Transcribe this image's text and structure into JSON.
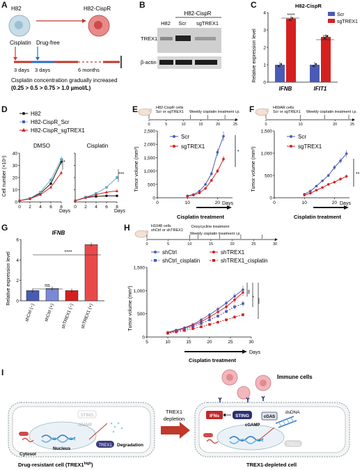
{
  "panels": {
    "A": {
      "letter": "A",
      "parent": "H82",
      "derived": "H82-CispR",
      "cisplatin": "Cisplatin",
      "drug_free": "Drug-free",
      "d1": "3 days",
      "d2": "3 days",
      "d3": "6 months",
      "caption1": "Cisplatin concentration gradually increased",
      "caption2": "(0.25 > 0.5 > 0.75 > 1.0 µmol/L)"
    },
    "B": {
      "letter": "B",
      "group": "H82-CispR",
      "lanes": [
        "H82",
        "Scr",
        "sgTREX1"
      ],
      "rows": [
        "TREX1",
        "β-actin"
      ]
    },
    "C": {
      "letter": "C",
      "title": "H82-CispR",
      "ylabel": "Relative expression level",
      "legend": [
        "Scr",
        "sgTREX1"
      ],
      "sig": [
        "****",
        "***"
      ],
      "colors": {
        "scr": "#4a5bb5",
        "sg": "#d62020"
      }
    },
    "D": {
      "letter": "D",
      "legend": [
        "H82",
        "H82-CispR_Scr",
        "H82-CispR_sgTREX1"
      ],
      "sub": [
        "DMSO",
        "Cisplatin"
      ],
      "ylabel": "Cell number (×10⁴)",
      "xlabel": "Days",
      "sig": [
        "*",
        "***"
      ]
    },
    "E": {
      "letter": "E",
      "note1": "H82-CispR cells",
      "note2": "Scr or sgTREX1",
      "note3": "Weekly cisplatin treatment i.p.",
      "ylabel": "Tumor volume (mm³)",
      "xlabel": "Days",
      "arrow": "Cisplatin treatment",
      "legend": [
        "Scr",
        "sgTREX1"
      ],
      "sig": "*"
    },
    "F": {
      "letter": "F",
      "note1": "H69AR cells",
      "note2": "Scr or sgTREX1",
      "note3": "Weekly cisplatin treatment i.p.",
      "ylabel": "Tumor volume (mm³)",
      "xlabel": "Days",
      "arrow": "Cisplatin treatment",
      "legend": [
        "Scr",
        "sgTREX1"
      ],
      "sig": "**"
    },
    "G": {
      "letter": "G",
      "title": "IFNB",
      "ylabel": "Relative expression level",
      "sig": [
        "ns",
        "****"
      ]
    },
    "H": {
      "letter": "H",
      "note1": "H1048 cells",
      "note2": "shCtrl or shTREX1",
      "note3": "Doxycycline treatment",
      "note4": "Weekly cisplatin treatment i.p.",
      "ylabel": "Tumor volume (mm³)",
      "xlabel": "Days",
      "arrow": "Cisplatin treatment",
      "legend": [
        "shCtrl",
        "shTREX1",
        "shCtrl_cisplatin",
        "shTREX1_cisplatin"
      ],
      "sig": [
        "ns",
        "*",
        "****"
      ]
    },
    "I": {
      "letter": "I",
      "immune": "Immune cells",
      "depletion1": "TREX1",
      "depletion2": "depletion",
      "left_caption": "Drug-resistant cell (TREX1",
      "left_caption_sup": "high",
      "left_caption_end": ")",
      "right_caption": "TREX1-depleted cell",
      "sting": "STING",
      "cgamp": "cGAMP",
      "cgas": "cGAS",
      "ifns": "IFNs",
      "dsdna": "dsDNA",
      "trex1": "TREX1",
      "nucleus": "Nucleus",
      "cytosol": "Cytosol",
      "degradation": "Degradation"
    }
  },
  "chart_data": [
    {
      "panel": "C",
      "type": "bar",
      "categories": [
        "IFNB",
        "IFIT1"
      ],
      "series": [
        {
          "name": "Scr",
          "values": [
            1.0,
            1.0
          ]
        },
        {
          "name": "sgTREX1",
          "values": [
            3.65,
            2.6
          ]
        }
      ],
      "ylabel": "Relative expression level",
      "ylim": [
        0,
        4
      ],
      "yticks": [
        0,
        1,
        2,
        3,
        4
      ]
    },
    {
      "panel": "D-DMSO",
      "type": "line",
      "x": [
        0,
        2,
        4,
        6,
        8
      ],
      "series": [
        {
          "name": "H82",
          "values": [
            1,
            3,
            7,
            15,
            33
          ]
        },
        {
          "name": "H82-CispR_Scr",
          "values": [
            1,
            3,
            8,
            18,
            35
          ]
        },
        {
          "name": "H82-CispR_sgTREX1",
          "values": [
            1,
            2.5,
            6,
            12,
            24
          ]
        }
      ],
      "ylim": [
        0,
        40
      ],
      "yticks": [
        0,
        10,
        20,
        30,
        40
      ],
      "xlabel": "Days",
      "xticks": [
        0,
        2,
        4,
        6,
        8
      ]
    },
    {
      "panel": "D-Cisplatin",
      "type": "line",
      "x": [
        0,
        2,
        4,
        6,
        8
      ],
      "series": [
        {
          "name": "H82",
          "values": [
            1,
            3.5,
            4.5,
            5,
            5
          ]
        },
        {
          "name": "H82-CispR_Scr",
          "values": [
            1,
            4,
            7,
            12,
            20
          ]
        },
        {
          "name": "H82-CispR_sgTREX1",
          "values": [
            1,
            3.5,
            6,
            8,
            9
          ]
        }
      ],
      "ylim": [
        0,
        40
      ],
      "xlabel": "Days",
      "xticks": [
        0,
        2,
        4,
        6,
        8
      ]
    },
    {
      "panel": "E",
      "type": "line",
      "x": [
        10,
        12,
        14,
        16,
        18,
        20,
        22
      ],
      "series": [
        {
          "name": "Scr",
          "values": [
            70,
            120,
            250,
            500,
            900,
            1700,
            2300
          ]
        },
        {
          "name": "sgTREX1",
          "values": [
            60,
            100,
            180,
            350,
            650,
            1000,
            1450
          ]
        }
      ],
      "ylabel": "Tumor volume (mm³)",
      "ylim": [
        0,
        2500
      ],
      "yticks": [
        0,
        500,
        1000,
        1500,
        2000,
        2500
      ],
      "xlim": [
        0,
        25
      ],
      "xticks": [
        0,
        10,
        20
      ],
      "xlabel": "Days"
    },
    {
      "panel": "F",
      "type": "line",
      "x": [
        10,
        12,
        14,
        16,
        18,
        20,
        22,
        24
      ],
      "series": [
        {
          "name": "Scr",
          "values": [
            80,
            150,
            260,
            380,
            500,
            680,
            830,
            990
          ]
        },
        {
          "name": "sgTREX1",
          "values": [
            60,
            100,
            170,
            230,
            300,
            350,
            420,
            480
          ]
        }
      ],
      "ylabel": "Tumor volume (mm³)",
      "ylim": [
        0,
        1500
      ],
      "yticks": [
        0,
        500,
        1000,
        1500
      ],
      "xlim": [
        0,
        25
      ],
      "xticks": [
        0,
        10,
        20
      ],
      "xlabel": "Days"
    },
    {
      "panel": "G",
      "type": "bar",
      "categories": [
        "shCtrl (−)",
        "shCtrl (+)",
        "shTREX1 (−)",
        "shTREX1 (+)"
      ],
      "values": [
        1.0,
        1.2,
        1.0,
        5.5
      ],
      "ylabel": "Relative expression level",
      "ylim": [
        0,
        6
      ],
      "yticks": [
        0,
        2,
        4,
        6
      ]
    },
    {
      "panel": "H",
      "type": "line",
      "x": [
        10,
        12,
        14,
        16,
        18,
        20,
        22,
        24,
        26,
        28
      ],
      "series": [
        {
          "name": "shCtrl",
          "values": [
            100,
            150,
            200,
            270,
            370,
            480,
            600,
            730,
            880,
            1020
          ]
        },
        {
          "name": "shTREX1",
          "values": [
            90,
            140,
            190,
            250,
            330,
            430,
            540,
            650,
            800,
            960
          ]
        },
        {
          "name": "shCtrl_cisplatin",
          "values": [
            90,
            130,
            170,
            220,
            290,
            370,
            450,
            550,
            650,
            720
          ]
        },
        {
          "name": "shTREX1_cisplatin",
          "values": [
            80,
            110,
            140,
            180,
            220,
            270,
            320,
            370,
            430,
            480
          ]
        }
      ],
      "ylabel": "Tumor volume (mm³)",
      "ylim": [
        0,
        1500
      ],
      "yticks": [
        0,
        500,
        1000,
        1500
      ],
      "xlim": [
        5,
        30
      ],
      "xticks": [
        5,
        10,
        15,
        20,
        25,
        30
      ],
      "xlabel": "Days"
    }
  ]
}
